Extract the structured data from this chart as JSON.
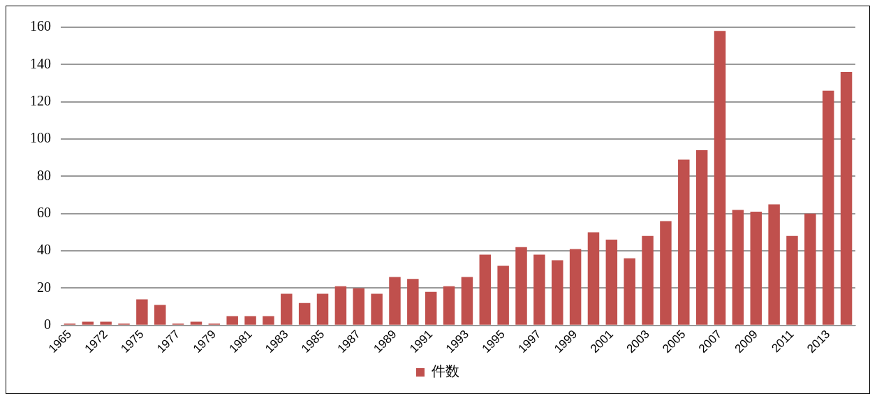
{
  "chart_data": {
    "type": "bar",
    "categories": [
      "1965",
      null,
      "1972",
      null,
      "1975",
      null,
      "1977",
      null,
      "1979",
      null,
      "1981",
      null,
      "1983",
      null,
      "1985",
      null,
      "1987",
      null,
      "1989",
      null,
      "1991",
      null,
      "1993",
      null,
      "1995",
      null,
      "1997",
      null,
      "1999",
      null,
      "2001",
      null,
      "2003",
      null,
      "2005",
      null,
      "2007",
      null,
      "2009",
      null,
      "2011",
      null,
      "2013",
      null
    ],
    "series": [
      {
        "name": "件数",
        "color": "#c0504d",
        "values": [
          1,
          2,
          2,
          1,
          14,
          11,
          1,
          2,
          1,
          5,
          5,
          5,
          17,
          12,
          17,
          21,
          20,
          17,
          26,
          25,
          18,
          21,
          26,
          38,
          32,
          42,
          38,
          35,
          41,
          50,
          46,
          36,
          48,
          56,
          89,
          94,
          158,
          62,
          61,
          65,
          48,
          60,
          126,
          136
        ]
      }
    ],
    "ylim": [
      0,
      160
    ],
    "yticks": [
      0,
      20,
      40,
      60,
      80,
      100,
      120,
      140,
      160
    ],
    "grid": "y",
    "legend": "bottom"
  }
}
